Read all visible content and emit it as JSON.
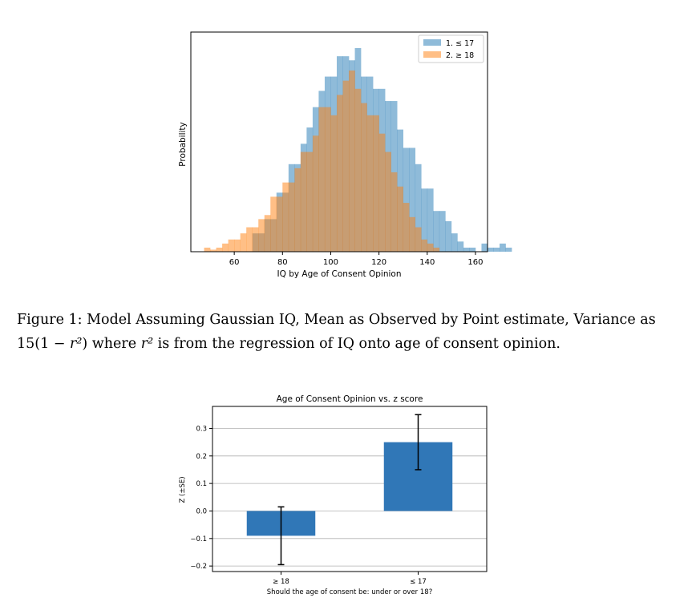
{
  "figure1": {
    "caption_prefix": "Figure 1:",
    "caption_line1": "Model Assuming Gaussian IQ, Mean as Observed by Point estimate, Variance as",
    "caption_line2_a": "15(1 − ",
    "caption_line2_r2": "r²",
    "caption_line2_b": ") where ",
    "caption_line2_c": " is from the regression of IQ onto age of consent opinion."
  },
  "chart_data": [
    {
      "type": "histogram",
      "title": "",
      "xlabel": "IQ by Age of Consent Opinion",
      "ylabel": "Probability",
      "xlim": [
        42,
        165
      ],
      "ylim": [
        0,
        1
      ],
      "xticks": [
        60,
        80,
        100,
        120,
        140,
        160
      ],
      "yticks": [],
      "grid": false,
      "legend": {
        "placement": "top-right",
        "entries": [
          "1.  ≤ 17",
          "2.  ≥ 18"
        ]
      },
      "bin_width": 2.5,
      "series": [
        {
          "name": "1.  ≤ 17",
          "color": "#1f77b4",
          "alpha": 0.5,
          "bin_start": 67.5,
          "values": [
            0.09,
            0.09,
            0.16,
            0.16,
            0.29,
            0.29,
            0.43,
            0.43,
            0.53,
            0.61,
            0.71,
            0.79,
            0.86,
            0.86,
            0.96,
            0.96,
            0.94,
            1.0,
            0.86,
            0.86,
            0.8,
            0.8,
            0.74,
            0.74,
            0.6,
            0.51,
            0.51,
            0.43,
            0.31,
            0.31,
            0.2,
            0.2,
            0.15,
            0.09,
            0.05,
            0.02,
            0.02,
            0.0,
            0.04,
            0.02,
            0.02,
            0.04,
            0.02
          ]
        },
        {
          "name": "2.  ≥ 18",
          "color": "#ff7f0e",
          "alpha": 0.5,
          "bin_start": 47.5,
          "values": [
            0.02,
            0.01,
            0.02,
            0.04,
            0.06,
            0.06,
            0.09,
            0.12,
            0.12,
            0.16,
            0.18,
            0.27,
            0.27,
            0.34,
            0.34,
            0.41,
            0.49,
            0.49,
            0.57,
            0.71,
            0.71,
            0.67,
            0.77,
            0.84,
            0.89,
            0.8,
            0.73,
            0.67,
            0.67,
            0.58,
            0.49,
            0.39,
            0.32,
            0.24,
            0.17,
            0.12,
            0.06,
            0.04,
            0.02
          ]
        }
      ]
    },
    {
      "type": "bar",
      "title": "Age of Consent Opinion vs. z score",
      "xlabel": "Should the age of consent be: under or over 18?",
      "ylabel": "Z (±SE)",
      "categories": [
        "≥ 18",
        "≤ 17"
      ],
      "values": [
        -0.09,
        0.25
      ],
      "errors": [
        0.105,
        0.1
      ],
      "ylim": [
        -0.22,
        0.38
      ],
      "yticks": [
        -0.2,
        -0.1,
        0.0,
        0.1,
        0.2,
        0.3
      ],
      "ytick_labels": [
        "−0.2",
        "−0.1",
        "0.0",
        "0.1",
        "0.2",
        "0.3"
      ],
      "grid": true,
      "bar_color": "#3077b7"
    }
  ]
}
